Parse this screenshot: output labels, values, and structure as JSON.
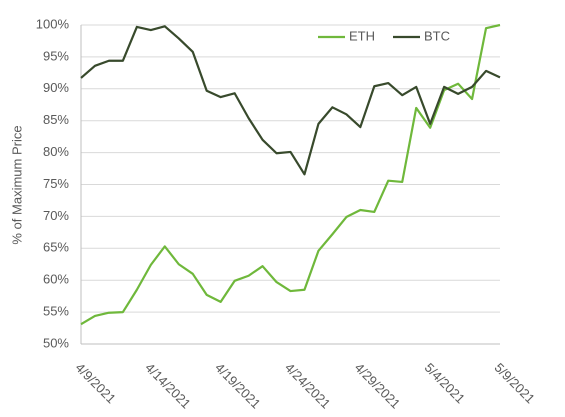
{
  "chart_data": {
    "type": "line",
    "y_label": "% of Maximum Price",
    "categories": [
      "4/9/2021",
      null,
      null,
      null,
      null,
      "4/14/2021",
      null,
      null,
      null,
      null,
      "4/19/2021",
      null,
      null,
      null,
      null,
      "4/24/2021",
      null,
      null,
      null,
      null,
      "4/29/2021",
      null,
      null,
      null,
      null,
      "5/4/2021",
      null,
      null,
      null,
      null,
      "5/9/2021"
    ],
    "series": [
      {
        "name": "ETH",
        "color": "#6fb83b",
        "values": [
          53.1,
          54.4,
          54.9,
          55.0,
          58.5,
          62.4,
          65.3,
          62.5,
          61.0,
          57.7,
          56.6,
          59.9,
          60.7,
          62.2,
          59.7,
          58.3,
          58.5,
          64.6,
          67.2,
          69.9,
          71.0,
          70.7,
          75.6,
          75.4,
          87.0,
          83.9,
          89.8,
          90.8,
          88.4,
          99.5,
          100
        ]
      },
      {
        "name": "BTC",
        "color": "#384a2c",
        "values": [
          91.7,
          93.6,
          94.4,
          94.4,
          99.7,
          99.2,
          99.8,
          97.9,
          95.8,
          89.7,
          88.7,
          89.3,
          85.4,
          82.0,
          79.9,
          80.1,
          76.6,
          84.5,
          87.1,
          86.0,
          84.0,
          90.4,
          90.9,
          89.0,
          90.3,
          84.5,
          90.3,
          89.2,
          90.3,
          92.8,
          91.8
        ]
      }
    ],
    "ylim": [
      50,
      100
    ],
    "yticks": [
      {
        "value": 50,
        "label": "50%"
      },
      {
        "value": 55,
        "label": "55%"
      },
      {
        "value": 60,
        "label": "60%"
      },
      {
        "value": 65,
        "label": "65%"
      },
      {
        "value": 70,
        "label": "70%"
      },
      {
        "value": 75,
        "label": "75%"
      },
      {
        "value": 80,
        "label": "80%"
      },
      {
        "value": 85,
        "label": "85%"
      },
      {
        "value": 90,
        "label": "90%"
      },
      {
        "value": 95,
        "label": "95%"
      },
      {
        "value": 100,
        "label": "100%"
      }
    ],
    "grid": true,
    "legend": "top-right"
  }
}
